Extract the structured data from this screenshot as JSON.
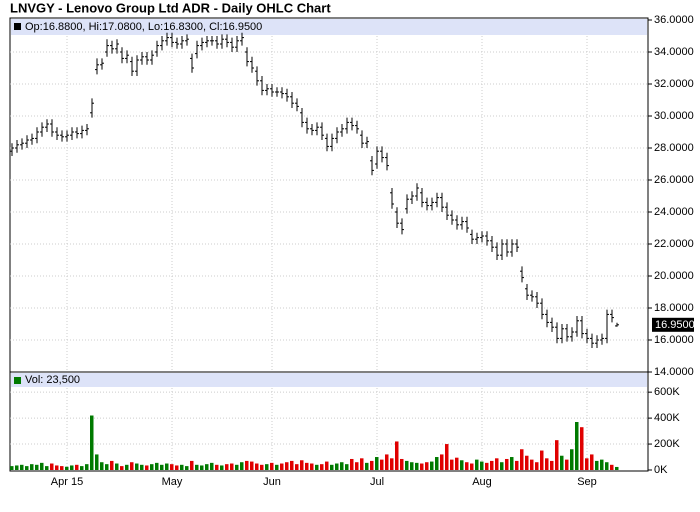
{
  "chart_data": {
    "type": "ohlc",
    "title": "LNVGY - Lenovo Group Ltd ADR - Daily OHLC Chart",
    "legend_text": "Op:16.8800, Hi:17.0800, Lo:16.8300, Cl:16.9500",
    "last_price_label": "16.9500",
    "color": "#000000",
    "categories": [
      null,
      null,
      null,
      null,
      null,
      null,
      null,
      null,
      null,
      null,
      null,
      "Apr 15",
      null,
      null,
      null,
      null,
      null,
      null,
      null,
      null,
      null,
      null,
      null,
      null,
      null,
      null,
      null,
      null,
      null,
      null,
      null,
      null,
      "May",
      null,
      null,
      null,
      null,
      null,
      null,
      null,
      null,
      null,
      null,
      null,
      null,
      null,
      null,
      null,
      null,
      null,
      null,
      null,
      "Jun",
      null,
      null,
      null,
      null,
      null,
      null,
      null,
      null,
      null,
      null,
      null,
      null,
      null,
      null,
      null,
      null,
      null,
      null,
      null,
      null,
      "Jul",
      null,
      null,
      null,
      null,
      null,
      null,
      null,
      null,
      null,
      null,
      null,
      null,
      null,
      null,
      null,
      null,
      null,
      null,
      null,
      null,
      "Aug",
      null,
      null,
      null,
      null,
      null,
      null,
      null,
      null,
      null,
      null,
      null,
      null,
      null,
      null,
      null,
      null,
      null,
      null,
      null,
      null,
      "Sep",
      null,
      null,
      null,
      null,
      null,
      null
    ],
    "open": [
      27.8,
      28.0,
      28.2,
      28.3,
      28.5,
      28.6,
      29.0,
      29.3,
      29.5,
      29.0,
      28.8,
      28.7,
      28.8,
      29.0,
      28.9,
      29.1,
      30.2,
      32.9,
      33.2,
      34.0,
      34.4,
      34.2,
      34.0,
      33.6,
      33.4,
      32.8,
      33.5,
      33.7,
      33.5,
      34.0,
      34.4,
      34.7,
      34.9,
      34.6,
      34.5,
      34.7,
      33.6,
      33.9,
      34.4,
      34.6,
      34.7,
      34.7,
      34.5,
      34.8,
      34.6,
      34.3,
      34.7,
      34.0,
      33.4,
      32.8,
      32.2,
      31.6,
      31.7,
      31.5,
      31.5,
      31.4,
      31.2,
      30.8,
      30.2,
      29.6,
      29.2,
      29.1,
      29.3,
      28.6,
      28.1,
      28.6,
      29.0,
      29.2,
      29.6,
      29.4,
      28.8,
      28.3,
      27.2,
      27.0,
      27.8,
      27.4,
      25.2,
      24.0,
      23.3,
      24.2,
      24.8,
      25.0,
      25.2,
      24.6,
      24.4,
      24.6,
      24.9,
      24.3,
      23.8,
      23.5,
      23.2,
      23.4,
      22.6,
      22.3,
      22.4,
      22.5,
      22.2,
      21.8,
      21.3,
      22.0,
      21.5,
      22.0,
      20.3,
      19.2,
      18.8,
      18.7,
      18.3,
      17.6,
      17.1,
      16.8,
      16.1,
      16.7,
      16.2,
      16.5,
      17.2,
      16.4,
      16.1,
      15.8,
      16.0,
      16.1,
      17.6,
      16.88
    ],
    "high": [
      28.3,
      28.5,
      28.6,
      28.8,
      28.9,
      29.3,
      29.6,
      29.8,
      29.8,
      29.3,
      29.1,
      29.1,
      29.3,
      29.3,
      29.4,
      29.5,
      31.1,
      33.6,
      33.6,
      34.8,
      34.7,
      34.8,
      34.3,
      34.1,
      33.7,
      33.8,
      34.0,
      34.0,
      34.1,
      34.7,
      35.0,
      35.2,
      35.2,
      34.9,
      35.0,
      35.1,
      33.9,
      34.7,
      34.9,
      35.0,
      35.0,
      35.0,
      35.1,
      35.1,
      34.9,
      35.0,
      35.2,
      34.3,
      33.7,
      33.1,
      32.5,
      32.0,
      32.0,
      31.8,
      31.8,
      31.7,
      31.5,
      31.1,
      30.5,
      29.9,
      29.5,
      29.6,
      29.6,
      28.9,
      28.9,
      29.3,
      29.5,
      29.9,
      29.9,
      29.7,
      29.1,
      28.7,
      27.5,
      28.1,
      28.1,
      27.7,
      25.5,
      24.3,
      23.6,
      25.1,
      25.3,
      25.8,
      25.5,
      24.9,
      24.9,
      25.2,
      25.2,
      24.6,
      24.1,
      23.8,
      23.7,
      23.7,
      22.9,
      22.7,
      22.8,
      22.8,
      22.5,
      22.1,
      22.3,
      22.3,
      22.3,
      22.3,
      20.6,
      19.5,
      19.1,
      19.0,
      18.6,
      17.9,
      17.4,
      17.1,
      17.0,
      17.0,
      16.8,
      17.5,
      17.5,
      16.7,
      16.4,
      16.3,
      16.4,
      17.9,
      17.9,
      17.08
    ],
    "low": [
      27.5,
      27.7,
      27.9,
      28.0,
      28.2,
      28.3,
      28.7,
      29.0,
      28.7,
      28.5,
      28.4,
      28.4,
      28.5,
      28.6,
      28.6,
      28.8,
      29.9,
      32.6,
      32.9,
      33.7,
      33.9,
      33.9,
      33.3,
      33.3,
      32.5,
      32.5,
      33.2,
      33.2,
      33.2,
      33.7,
      34.1,
      34.4,
      34.3,
      34.2,
      34.2,
      34.4,
      32.7,
      33.6,
      34.1,
      34.3,
      34.4,
      34.2,
      34.2,
      34.3,
      34.0,
      34.0,
      34.4,
      33.1,
      32.7,
      31.9,
      31.3,
      31.3,
      31.2,
      31.2,
      31.1,
      30.9,
      30.5,
      30.3,
      29.3,
      28.9,
      28.8,
      28.8,
      28.5,
      27.8,
      27.8,
      28.3,
      28.7,
      28.9,
      29.1,
      28.9,
      28.0,
      28.0,
      26.3,
      26.7,
      27.1,
      26.6,
      24.2,
      23.0,
      22.6,
      23.9,
      24.5,
      24.7,
      24.3,
      24.1,
      24.1,
      24.3,
      24.0,
      23.5,
      23.2,
      22.9,
      22.9,
      22.7,
      22.0,
      22.0,
      22.1,
      21.9,
      21.5,
      21.0,
      21.0,
      21.2,
      21.2,
      21.5,
      19.6,
      18.5,
      18.4,
      18.0,
      17.3,
      16.8,
      16.5,
      15.8,
      15.8,
      15.9,
      15.9,
      16.2,
      16.1,
      15.8,
      15.5,
      15.5,
      15.7,
      15.8,
      17.1,
      16.83
    ],
    "close": [
      28.0,
      28.2,
      28.3,
      28.5,
      28.6,
      29.0,
      29.3,
      29.5,
      29.0,
      28.8,
      28.7,
      28.8,
      29.0,
      28.9,
      29.1,
      29.2,
      30.8,
      33.2,
      33.3,
      34.4,
      34.2,
      34.5,
      33.6,
      33.8,
      32.8,
      33.5,
      33.7,
      33.5,
      33.8,
      34.4,
      34.7,
      34.9,
      34.6,
      34.5,
      34.7,
      34.8,
      33.0,
      34.4,
      34.6,
      34.7,
      34.7,
      34.5,
      34.8,
      34.6,
      34.3,
      34.7,
      34.9,
      33.4,
      33.0,
      32.2,
      31.6,
      31.7,
      31.5,
      31.5,
      31.4,
      31.2,
      30.8,
      30.6,
      29.6,
      29.2,
      29.1,
      29.3,
      28.8,
      28.1,
      28.6,
      29.0,
      29.2,
      29.6,
      29.4,
      29.2,
      28.3,
      28.4,
      26.6,
      27.8,
      27.4,
      26.9,
      24.5,
      23.3,
      22.9,
      24.8,
      25.0,
      25.5,
      24.6,
      24.4,
      24.6,
      24.9,
      24.3,
      23.8,
      23.5,
      23.2,
      23.4,
      23.0,
      22.3,
      22.4,
      22.5,
      22.2,
      21.8,
      21.3,
      22.0,
      21.5,
      22.0,
      21.8,
      19.9,
      18.8,
      18.7,
      18.3,
      17.6,
      17.1,
      16.8,
      16.1,
      16.7,
      16.2,
      16.5,
      17.2,
      16.4,
      16.1,
      15.8,
      16.0,
      16.1,
      17.6,
      17.4,
      16.95
    ],
    "ylim": [
      14,
      36
    ],
    "yticks": [
      {
        "value": 36,
        "label": "36.0000"
      },
      {
        "value": 34,
        "label": "34.0000"
      },
      {
        "value": 32,
        "label": "32.0000"
      },
      {
        "value": 30,
        "label": "30.0000"
      },
      {
        "value": 28,
        "label": "28.0000"
      },
      {
        "value": 26,
        "label": "26.0000"
      },
      {
        "value": 24,
        "label": "24.0000"
      },
      {
        "value": 22,
        "label": "22.0000"
      },
      {
        "value": 20,
        "label": "20.0000"
      },
      {
        "value": 18,
        "label": "18.0000"
      },
      {
        "value": 16,
        "label": "16.0000"
      },
      {
        "value": 14,
        "label": "14.0000"
      }
    ],
    "volume_legend": "Vol: 23,500",
    "volume": [
      30000,
      35000,
      40000,
      30000,
      45000,
      40000,
      55000,
      30000,
      50000,
      35000,
      30000,
      25000,
      35000,
      40000,
      30000,
      45000,
      420000,
      120000,
      60000,
      45000,
      70000,
      50000,
      30000,
      40000,
      60000,
      50000,
      40000,
      35000,
      45000,
      55000,
      40000,
      50000,
      45000,
      35000,
      40000,
      30000,
      70000,
      40000,
      35000,
      45000,
      55000,
      40000,
      35000,
      45000,
      50000,
      40000,
      60000,
      70000,
      65000,
      50000,
      40000,
      45000,
      55000,
      40000,
      50000,
      60000,
      70000,
      45000,
      75000,
      55000,
      50000,
      40000,
      45000,
      65000,
      40000,
      50000,
      60000,
      45000,
      85000,
      60000,
      90000,
      55000,
      70000,
      100000,
      80000,
      120000,
      90000,
      220000,
      85000,
      70000,
      60000,
      55000,
      50000,
      60000,
      65000,
      100000,
      120000,
      200000,
      80000,
      95000,
      75000,
      60000,
      50000,
      80000,
      65000,
      55000,
      70000,
      90000,
      60000,
      85000,
      100000,
      70000,
      160000,
      110000,
      80000,
      60000,
      150000,
      90000,
      70000,
      230000,
      110000,
      80000,
      160000,
      370000,
      330000,
      90000,
      120000,
      70000,
      80000,
      60000,
      40000,
      23500
    ],
    "up_color": "#007a00",
    "down_color": "#e00000",
    "vol_ylim": [
      0,
      740000
    ],
    "vol_yticks": [
      {
        "value": 600000,
        "label": "600K"
      },
      {
        "value": 400000,
        "label": "400K"
      },
      {
        "value": 200000,
        "label": "200K"
      },
      {
        "value": 0,
        "label": "0K"
      }
    ],
    "grid": true
  }
}
